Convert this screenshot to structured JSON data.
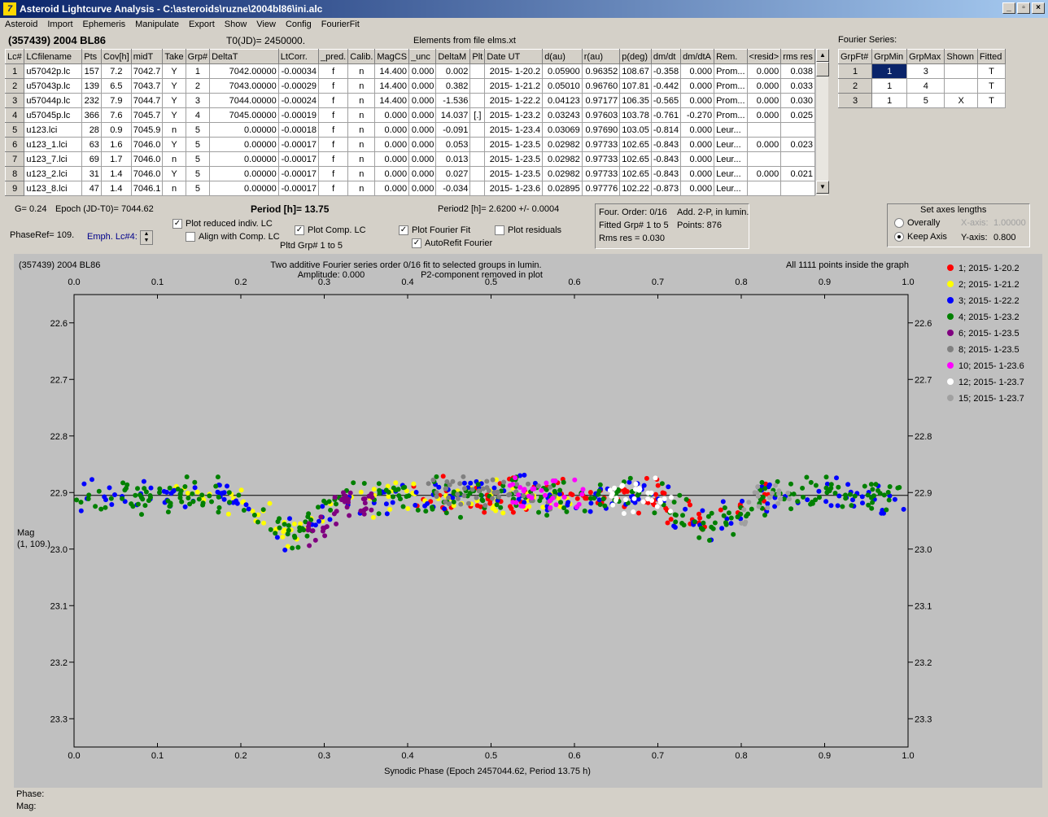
{
  "window": {
    "title": "Asteroid Lightcurve Analysis - C:\\asteroids\\ruzne\\2004bl86\\ini.alc"
  },
  "menu": [
    "Asteroid",
    "Import",
    "Ephemeris",
    "Manipulate",
    "Export",
    "Show",
    "View",
    "Config",
    "FourierFit"
  ],
  "header": {
    "object": "(357439) 2004 BL86",
    "t0": "T0(JD)= 2450000.",
    "elements": "Elements from file elms.xt"
  },
  "lc_table": {
    "columns": [
      "Lc#",
      "LCfilename",
      "Pts",
      "Cov[h]",
      "midT",
      "Take",
      "Grp#",
      "DeltaT",
      "LtCorr.",
      "_pred.",
      "Calib.",
      "MagCS",
      "_unc",
      "DeltaM",
      "Plt",
      "Date UT",
      "d(au)",
      "r(au)",
      "p(deg)",
      "dm/dt",
      "dm/dtA",
      "Rem.",
      "<resid>",
      "rms res"
    ],
    "rows": [
      [
        "1",
        "u57042p.lc",
        "157",
        "7.2",
        "7042.7",
        "Y",
        "1",
        "7042.00000",
        "-0.00034",
        "f",
        "n",
        "14.400",
        "0.000",
        "0.002",
        "",
        "2015- 1-20.2",
        "0.05900",
        "0.96352",
        "108.67",
        "-0.358",
        "0.000",
        "Prom...",
        "0.000",
        "0.038"
      ],
      [
        "2",
        "u57043p.lc",
        "139",
        "6.5",
        "7043.7",
        "Y",
        "2",
        "7043.00000",
        "-0.00029",
        "f",
        "n",
        "14.400",
        "0.000",
        "0.382",
        "",
        "2015- 1-21.2",
        "0.05010",
        "0.96760",
        "107.81",
        "-0.442",
        "0.000",
        "Prom...",
        "0.000",
        "0.033"
      ],
      [
        "3",
        "u57044p.lc",
        "232",
        "7.9",
        "7044.7",
        "Y",
        "3",
        "7044.00000",
        "-0.00024",
        "f",
        "n",
        "14.400",
        "0.000",
        "-1.536",
        "",
        "2015- 1-22.2",
        "0.04123",
        "0.97177",
        "106.35",
        "-0.565",
        "0.000",
        "Prom...",
        "0.000",
        "0.030"
      ],
      [
        "4",
        "u57045p.lc",
        "366",
        "7.6",
        "7045.7",
        "Y",
        "4",
        "7045.00000",
        "-0.00019",
        "f",
        "n",
        "0.000",
        "0.000",
        "14.037",
        "[.]",
        "2015- 1-23.2",
        "0.03243",
        "0.97603",
        "103.78",
        "-0.761",
        "-0.270",
        "Prom...",
        "0.000",
        "0.025"
      ],
      [
        "5",
        "u123.lci",
        "28",
        "0.9",
        "7045.9",
        "n",
        "5",
        "0.00000",
        "-0.00018",
        "f",
        "n",
        "0.000",
        "0.000",
        "-0.091",
        "",
        "2015- 1-23.4",
        "0.03069",
        "0.97690",
        "103.05",
        "-0.814",
        "0.000",
        "Leur...",
        "",
        ""
      ],
      [
        "6",
        "u123_1.lci",
        "63",
        "1.6",
        "7046.0",
        "Y",
        "5",
        "0.00000",
        "-0.00017",
        "f",
        "n",
        "0.000",
        "0.000",
        "0.053",
        "",
        "2015- 1-23.5",
        "0.02982",
        "0.97733",
        "102.65",
        "-0.843",
        "0.000",
        "Leur...",
        "0.000",
        "0.023"
      ],
      [
        "7",
        "u123_7.lci",
        "69",
        "1.7",
        "7046.0",
        "n",
        "5",
        "0.00000",
        "-0.00017",
        "f",
        "n",
        "0.000",
        "0.000",
        "0.013",
        "",
        "2015- 1-23.5",
        "0.02982",
        "0.97733",
        "102.65",
        "-0.843",
        "0.000",
        "Leur...",
        "",
        ""
      ],
      [
        "8",
        "u123_2.lci",
        "31",
        "1.4",
        "7046.0",
        "Y",
        "5",
        "0.00000",
        "-0.00017",
        "f",
        "n",
        "0.000",
        "0.000",
        "0.027",
        "",
        "2015- 1-23.5",
        "0.02982",
        "0.97733",
        "102.65",
        "-0.843",
        "0.000",
        "Leur...",
        "0.000",
        "0.021"
      ],
      [
        "9",
        "u123_8.lci",
        "47",
        "1.4",
        "7046.1",
        "n",
        "5",
        "0.00000",
        "-0.00017",
        "f",
        "n",
        "0.000",
        "0.000",
        "-0.034",
        "",
        "2015- 1-23.6",
        "0.02895",
        "0.97776",
        "102.22",
        "-0.873",
        "0.000",
        "Leur...",
        "",
        ""
      ]
    ]
  },
  "fourier_series": {
    "label": "Fourier Series:",
    "columns": [
      "GrpFt#",
      "GrpMin",
      "GrpMax",
      "Shown",
      "Fitted"
    ],
    "rows": [
      [
        "1",
        "1",
        "3",
        "",
        "T"
      ],
      [
        "2",
        "1",
        "4",
        "",
        "T"
      ],
      [
        "3",
        "1",
        "5",
        "X",
        "T"
      ]
    ]
  },
  "controls": {
    "g": "G= 0.24",
    "epoch": "Epoch (JD-T0)= 7044.62",
    "period": "Period [h]= 13.75",
    "period2": "Period2 [h]= 2.6200 +/- 0.0004",
    "phase_ref": "PhaseRef= 109.",
    "emph": "Emph. Lc#4:",
    "plot_reduced": "Plot reduced indiv. LC",
    "align_comp": "Align with Comp. LC",
    "plot_comp": "Plot Comp. LC",
    "pltd_grp": "Pltd Grp#  1   to   5",
    "plot_fourier": "Plot Fourier Fit",
    "autorefit": "AutoRefit Fourier",
    "plot_residuals": "Plot residuals",
    "info": {
      "four_order": "Four. Order:  0/16",
      "add": "Add. 2-P, in lumin.",
      "fitted": "Fitted Grp# 1 to 5",
      "points": "Points: 876",
      "rms": "Rms res     = 0.030"
    },
    "axes": {
      "title": "Set axes lengths",
      "overally": "Overally",
      "keep": "Keep Axis",
      "x_label": "X-axis:",
      "x_value": "1.00000",
      "y_label": "Y-axis:",
      "y_value": "0.800"
    }
  },
  "plot": {
    "object": "(357439) 2004 BL86",
    "subtitle1": "Two additive Fourier series order 0/16 fit to selected groups in lumin.",
    "subtitle2": "Amplitude: 0.000",
    "subtitle3": "P2-component removed in plot",
    "points_inside": "All 1111 points inside the graph",
    "ylabel1": "Mag",
    "ylabel2": "(1, 109.)",
    "xlabel": "Synodic Phase (Epoch 2457044.62, Period 13.75 h)",
    "status_phase": "Phase:",
    "status_mag": "Mag:"
  },
  "chart_data": {
    "type": "scatter",
    "xlim": [
      0.0,
      1.0
    ],
    "ylim": [
      23.35,
      22.55
    ],
    "x_ticks": [
      "0.0",
      "0.1",
      "0.2",
      "0.3",
      "0.4",
      "0.5",
      "0.6",
      "0.7",
      "0.8",
      "0.9",
      "1.0"
    ],
    "y_ticks": [
      "22.6",
      "22.7",
      "22.8",
      "22.9",
      "23.0",
      "23.1",
      "23.2",
      "23.3"
    ],
    "fit_line_y": 22.905,
    "legend_position": "right",
    "series": [
      {
        "name": "1; 2015- 1-20.2",
        "color": "#ff0000",
        "x_range": [
          0.4,
          0.84
        ],
        "mean": 22.92
      },
      {
        "name": "2; 2015- 1-21.2",
        "color": "#ffff00",
        "x_range": [
          0.12,
          0.6
        ],
        "mean": 22.93
      },
      {
        "name": "3; 2015- 1-22.2",
        "color": "#0000ff",
        "x_range": [
          0.0,
          1.0
        ],
        "mean": 22.93
      },
      {
        "name": "4; 2015- 1-23.2",
        "color": "#008000",
        "x_range": [
          0.0,
          1.0
        ],
        "mean": 22.92
      },
      {
        "name": "6; 2015- 1-23.5",
        "color": "#800080",
        "x_range": [
          0.28,
          0.36
        ],
        "mean": 22.96
      },
      {
        "name": "8; 2015- 1-23.5",
        "color": "#808080",
        "x_range": [
          0.42,
          0.58
        ],
        "mean": 22.9
      },
      {
        "name": "10; 2015- 1-23.6",
        "color": "#ff00ff",
        "x_range": [
          0.52,
          0.62
        ],
        "mean": 22.91
      },
      {
        "name": "12; 2015- 1-23.7",
        "color": "#ffffff",
        "x_range": [
          0.64,
          0.72
        ],
        "mean": 22.92
      },
      {
        "name": "15; 2015- 1-23.7",
        "color": "#a0a0a0",
        "x_range": [
          0.8,
          0.86
        ],
        "mean": 22.93
      }
    ]
  }
}
